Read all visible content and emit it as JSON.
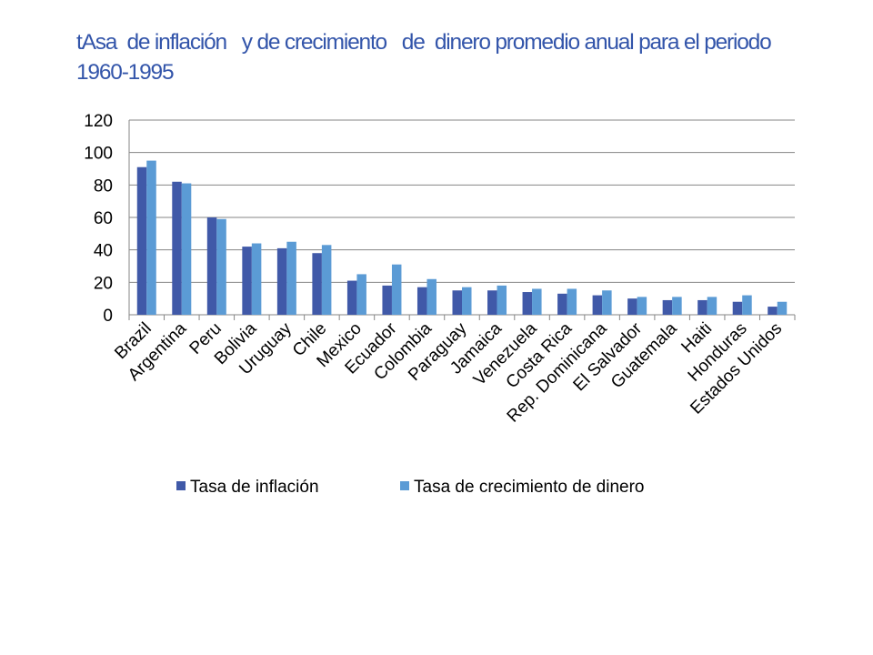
{
  "slide": {
    "title": "tAsa  de inflación   y de crecimiento   de  dinero promedio anual para el periodo 1960-1995"
  },
  "chart_data": {
    "type": "bar",
    "categories": [
      "Brazil",
      "Argentina",
      "Peru",
      "Bolivia",
      "Uruguay",
      "Chile",
      "Mexico",
      "Ecuador",
      "Colombia",
      "Paraguay",
      "Jamaica",
      "Venezuela",
      "Costa Rica",
      "Rep. Dominicana",
      "El Salvador",
      "Guatemala",
      "Haiti",
      "Honduras",
      "Estados Unidos"
    ],
    "series": [
      {
        "name": "Tasa de inflación",
        "color": "#4059a8",
        "values": [
          91,
          82,
          60,
          42,
          41,
          38,
          21,
          18,
          17,
          15,
          15,
          14,
          13,
          12,
          10,
          9,
          9,
          8,
          5
        ]
      },
      {
        "name": "Tasa de crecimiento de dinero",
        "color": "#5b9bd5",
        "values": [
          95,
          81,
          59,
          44,
          45,
          43,
          25,
          31,
          22,
          17,
          18,
          16,
          16,
          15,
          11,
          11,
          11,
          12,
          8
        ]
      }
    ],
    "y_ticks": [
      "0",
      "20",
      "40",
      "60",
      "80",
      "100",
      "120"
    ],
    "ylim": [
      0,
      120
    ],
    "grid": true,
    "legend_position": "bottom"
  }
}
